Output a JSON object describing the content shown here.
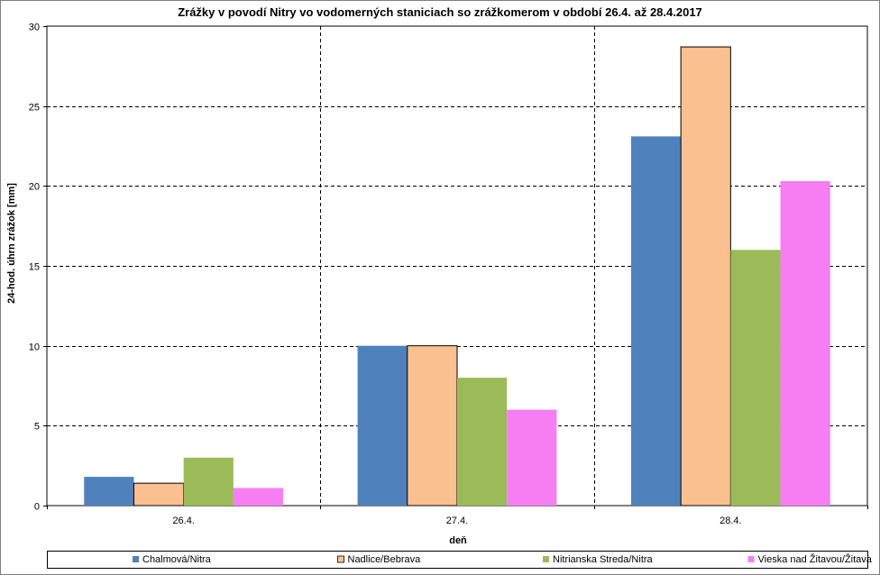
{
  "chart_data": {
    "type": "bar",
    "title": "Zrážky v povodí Nitry vo vodomerných staniciach so zrážkomerom v období 26.4.  až 28.4.2017",
    "xlabel": "deň",
    "ylabel": "24-hod. úhrn zrážok [mm]",
    "categories": [
      "26.4.",
      "27.4.",
      "28.4."
    ],
    "ylim": [
      0,
      30
    ],
    "yticks": [
      0,
      5,
      10,
      15,
      20,
      25,
      30
    ],
    "grid": "dashed",
    "legend": "bottom",
    "series": [
      {
        "name": "Chalmová/Nitra",
        "color": "#4f81bd",
        "values": [
          1.8,
          10.0,
          23.1
        ]
      },
      {
        "name": "Nadlice/Bebrava",
        "color": "#fac090",
        "values": [
          1.4,
          10.0,
          28.7
        ]
      },
      {
        "name": "Nitrianska Streda/Nitra",
        "color": "#9bbb59",
        "values": [
          3.0,
          8.0,
          16.0
        ]
      },
      {
        "name": "Vieska nad Žitavou/Žitava",
        "color": "#f77ef2",
        "values": [
          1.1,
          6.0,
          20.3
        ]
      }
    ]
  }
}
